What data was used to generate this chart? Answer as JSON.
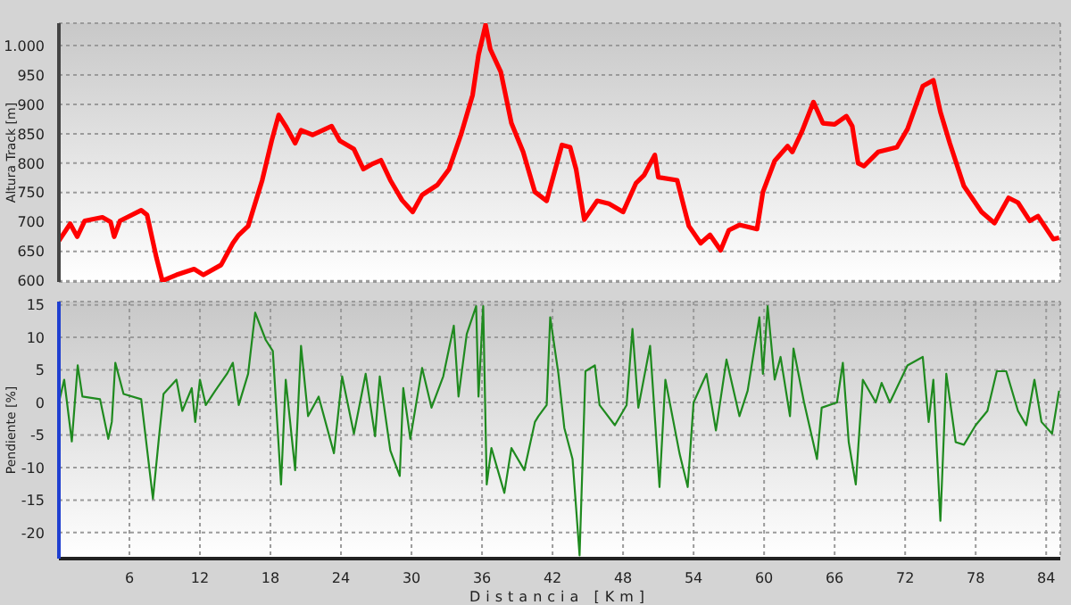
{
  "chart_data": [
    {
      "type": "line",
      "ylabel": "Altura Track [m]",
      "xlim": [
        0,
        85.2
      ],
      "xticks": [
        6,
        12,
        18,
        24,
        30,
        36,
        42,
        48,
        54,
        60,
        66,
        72,
        78,
        84
      ],
      "ylim": [
        598,
        1038
      ],
      "yticks": [
        600,
        650,
        700,
        750,
        800,
        850,
        900,
        950,
        {
          "value": 1000,
          "label": "1.000"
        }
      ],
      "tick_labels": "y",
      "grid": true,
      "series": [
        {
          "color": "#ff0000",
          "x": [
            0,
            0.96,
            1.56,
            2.2,
            3.7,
            4.4,
            4.7,
            5.2,
            7.0,
            7.5,
            8.3,
            8.8,
            10.0,
            11.5,
            12.3,
            13.8,
            14.8,
            15.3,
            16.1,
            17.3,
            18.1,
            18.7,
            19.3,
            20.1,
            20.6,
            21.6,
            23.2,
            23.9,
            25.1,
            25.9,
            26.6,
            27.4,
            28.2,
            29.2,
            30.1,
            30.9,
            32.2,
            33.2,
            34.2,
            35.2,
            35.7,
            36.3,
            36.7,
            37.6,
            38.5,
            39.5,
            40.5,
            41.5,
            42.8,
            43.5,
            44.0,
            44.7,
            45.8,
            46.8,
            48.0,
            49.1,
            49.8,
            50.7,
            51.0,
            52.6,
            53.6,
            54.6,
            55.4,
            56.3,
            57.0,
            57.9,
            59.4,
            59.9,
            60.9,
            62.0,
            62.4,
            63.2,
            64.2,
            65.0,
            66.0,
            67.0,
            67.5,
            68.0,
            68.5,
            69.7,
            71.3,
            72.2,
            73.5,
            74.4,
            75.0,
            75.8,
            77.0,
            78.5,
            79.6,
            80.8,
            81.6,
            82.6,
            83.3,
            84.6,
            85.1
          ],
          "values": [
            668,
            697,
            675,
            702,
            708,
            700,
            675,
            702,
            720,
            712,
            639,
            600,
            610,
            620,
            610,
            627,
            664,
            678,
            693,
            771,
            838,
            882,
            863,
            834,
            856,
            848,
            863,
            838,
            824,
            790,
            798,
            805,
            771,
            737,
            717,
            746,
            763,
            790,
            848,
            916,
            984,
            1035,
            994,
            955,
            868,
            819,
            751,
            736,
            831,
            827,
            790,
            704,
            736,
            731,
            717,
            766,
            780,
            814,
            776,
            771,
            693,
            664,
            678,
            652,
            686,
            695,
            688,
            751,
            804,
            829,
            819,
            853,
            904,
            868,
            866,
            880,
            863,
            800,
            795,
            819,
            827,
            858,
            931,
            941,
            887,
            834,
            761,
            717,
            698,
            741,
            733,
            702,
            710,
            671,
            673
          ]
        }
      ]
    },
    {
      "type": "line",
      "xlabel": "Distancia [Km]",
      "ylabel": "Pendiente [%]",
      "xlim": [
        0,
        85.2
      ],
      "xticks": [
        6,
        12,
        18,
        24,
        30,
        36,
        42,
        48,
        54,
        60,
        66,
        72,
        78,
        84
      ],
      "ylim": [
        -24,
        15.5
      ],
      "yticks": [
        -20,
        -15,
        -10,
        -5,
        0,
        5,
        10,
        15
      ],
      "grid": true,
      "series": [
        {
          "color": "#1f8a1f",
          "x": [
            0,
            0.45,
            1.1,
            1.6,
            2.0,
            3.5,
            4.2,
            4.5,
            4.8,
            5.5,
            7.0,
            8.0,
            8.5,
            8.9,
            10.0,
            10.5,
            11.3,
            11.6,
            12.0,
            12.5,
            13.3,
            14.3,
            14.8,
            15.3,
            16.1,
            16.7,
            17.6,
            18.2,
            18.9,
            19.3,
            20.1,
            20.6,
            21.2,
            22.1,
            23.4,
            24.1,
            25.1,
            26.1,
            26.9,
            27.3,
            28.2,
            29.0,
            29.3,
            29.9,
            30.9,
            31.7,
            32.7,
            33.6,
            34.0,
            34.7,
            35.5,
            35.7,
            36.1,
            36.4,
            36.8,
            37.9,
            38.5,
            39.6,
            40.5,
            40.8,
            41.5,
            41.8,
            42.5,
            43.0,
            43.7,
            44.3,
            44.8,
            45.6,
            46.0,
            47.3,
            48.3,
            48.8,
            49.3,
            50.3,
            51.1,
            51.6,
            52.8,
            53.5,
            54.0,
            55.1,
            55.9,
            56.8,
            57.9,
            58.6,
            59.6,
            59.9,
            60.3,
            60.9,
            61.4,
            62.2,
            62.5,
            63.4,
            64.5,
            64.9,
            66.2,
            66.7,
            67.2,
            67.8,
            68.4,
            69.5,
            70.0,
            70.7,
            72.2,
            73.5,
            74.0,
            74.4,
            75.0,
            75.5,
            76.3,
            77.0,
            78.0,
            79.0,
            79.8,
            80.6,
            81.6,
            82.3,
            83.0,
            83.6,
            84.5,
            85.1
          ],
          "values": [
            0,
            3.5,
            -6,
            5.7,
            0.9,
            0.5,
            -5.6,
            -3,
            6.1,
            1.3,
            0.5,
            -14.8,
            -5.6,
            1.3,
            3.5,
            -1.3,
            2.2,
            -3,
            3.5,
            -0.4,
            1.8,
            4.4,
            6.1,
            -0.4,
            4.4,
            13.8,
            9.6,
            7.9,
            -12.6,
            3.5,
            -10.4,
            8.7,
            -2.1,
            0.9,
            -7.8,
            4,
            -4.8,
            4.4,
            -5.2,
            4,
            -7.4,
            -11.3,
            2.2,
            -5.6,
            5.3,
            -0.8,
            4,
            11.8,
            0.9,
            10.5,
            14.8,
            0.9,
            14.8,
            -12.6,
            -7,
            -13.9,
            -7,
            -10.4,
            -3,
            -2.1,
            -0.4,
            13.1,
            4.4,
            -3.9,
            -8.7,
            -23.5,
            4.8,
            5.7,
            -0.4,
            -3.5,
            -0.4,
            11.3,
            -0.8,
            8.7,
            -13,
            3.5,
            -7.8,
            -13,
            0,
            4.4,
            -4.3,
            6.6,
            -2.1,
            1.8,
            13.1,
            4.4,
            14.8,
            3.5,
            7,
            -2.1,
            8.3,
            0,
            -8.7,
            -0.8,
            0,
            6.1,
            -6.1,
            -12.6,
            3.5,
            0,
            3,
            0,
            5.7,
            7,
            -3,
            3.5,
            -18.2,
            4.4,
            -6.1,
            -6.5,
            -3.5,
            -1.3,
            4.8,
            4.8,
            -1.3,
            -3.5,
            3.5,
            -3,
            -4.8,
            1.8
          ]
        }
      ]
    }
  ]
}
